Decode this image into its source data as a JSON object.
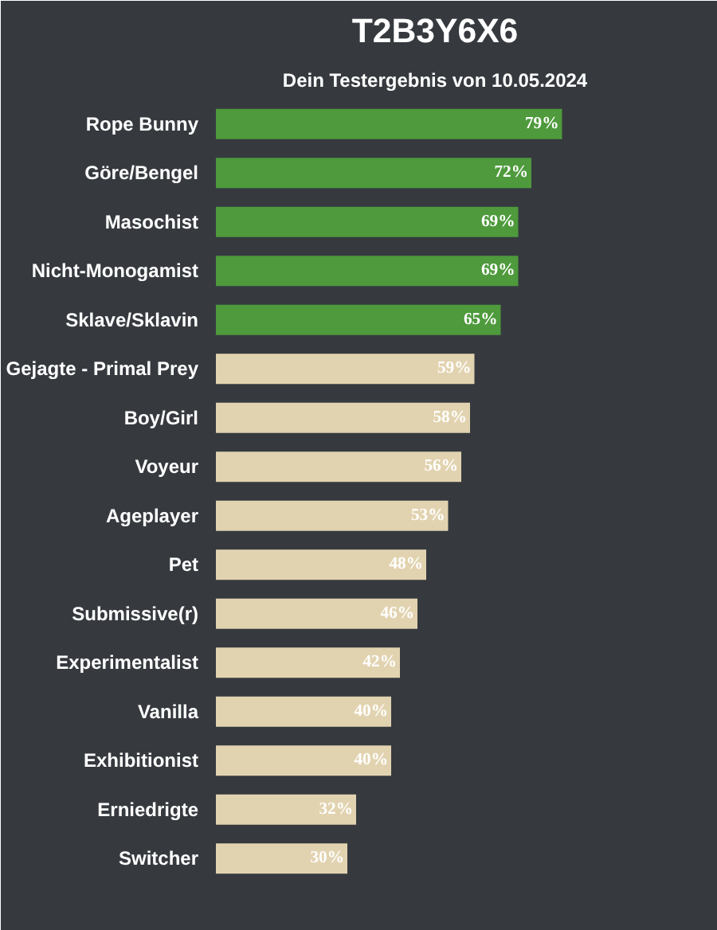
{
  "chart_data": {
    "type": "bar",
    "orientation": "horizontal",
    "title": "T2B3Y6X6",
    "subtitle": "Dein Testergebnis von 10.05.2024",
    "categories": [
      "Rope Bunny",
      "Göre/Bengel",
      "Masochist",
      "Nicht-Monogamist",
      "Sklave/Sklavin",
      "Gejagte - Primal Prey",
      "Boy/Girl",
      "Voyeur",
      "Ageplayer",
      "Pet",
      "Submissive(r)",
      "Experimentalist",
      "Vanilla",
      "Exhibitionist",
      "Erniedrigte",
      "Switcher"
    ],
    "values": [
      79,
      72,
      69,
      69,
      65,
      59,
      58,
      56,
      53,
      48,
      46,
      42,
      40,
      40,
      32,
      30
    ],
    "value_labels": [
      "79%",
      "72%",
      "69%",
      "69%",
      "65%",
      "59%",
      "58%",
      "56%",
      "53%",
      "48%",
      "46%",
      "42%",
      "40%",
      "40%",
      "32%",
      "30%"
    ],
    "colors": [
      "#4e9a3c",
      "#4e9a3c",
      "#4e9a3c",
      "#4e9a3c",
      "#4e9a3c",
      "#e2d3b0",
      "#e2d3b0",
      "#e2d3b0",
      "#e2d3b0",
      "#e2d3b0",
      "#e2d3b0",
      "#e2d3b0",
      "#e2d3b0",
      "#e2d3b0",
      "#e2d3b0",
      "#e2d3b0"
    ],
    "xlim": [
      0,
      100
    ],
    "tick_labels": "y",
    "grid": false
  }
}
